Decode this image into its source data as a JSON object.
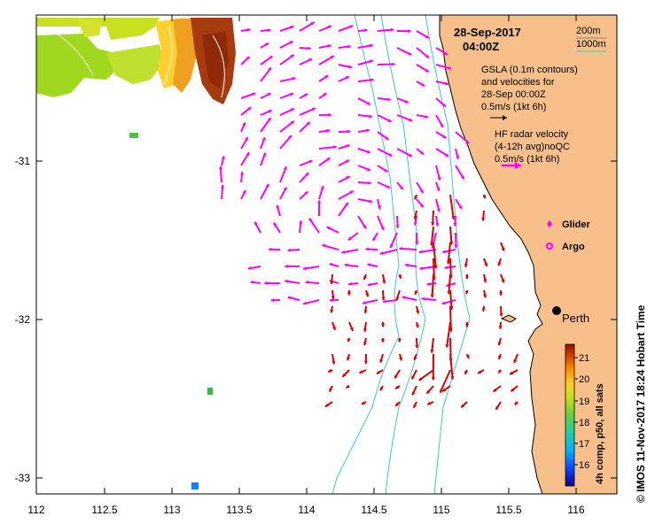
{
  "map": {
    "date": "28-Sep-2017",
    "time": "04:00Z",
    "x_ticks": [
      "112",
      "112.5",
      "113",
      "113.5",
      "114",
      "114.5",
      "115",
      "115.5",
      "116"
    ],
    "y_ticks": [
      "-31",
      "-32",
      "-33"
    ],
    "place_label": "Perth"
  },
  "legend": {
    "depth_200": "200m",
    "depth_1000": "1000m",
    "depth_200_color": "#888888",
    "depth_1000_color": "#33cccc",
    "gsla_line1": "GSLA (0.1m contours)",
    "gsla_line2": "and velocities for",
    "gsla_line3": "28-Sep 00:00Z",
    "gsla_scale": "0.5m/s (1kt 6h)",
    "hf_line1": "HF radar velocity",
    "hf_line2": "(4-12h avg)noQC",
    "hf_scale": "0.5m/s (1kt 6h)",
    "glider": "Glider",
    "argo": "Argo",
    "hf_color": "#ff00ff",
    "glider_color": "#ff00ff",
    "radar_vector_color": "#dd0000"
  },
  "colorbar": {
    "label": "4h comp, p50, all sats",
    "ticks": [
      "21",
      "20",
      "19",
      "18",
      "17",
      "16"
    ]
  },
  "credit": "© IMOS 11-Nov-2017 18:24 Hobart Time",
  "colors": {
    "land": "#f7c08a",
    "ocean": "#ffffff"
  }
}
